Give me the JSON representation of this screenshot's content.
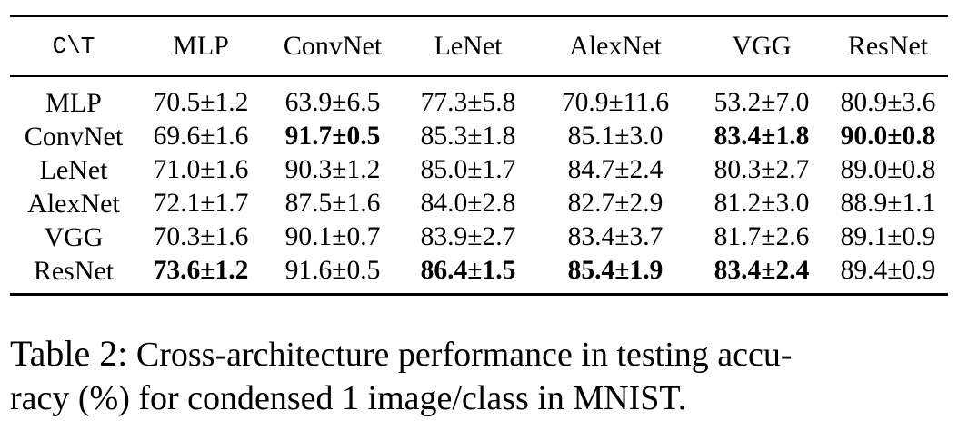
{
  "table": {
    "corner_label": "C\\T",
    "columns": [
      "MLP",
      "ConvNet",
      "LeNet",
      "AlexNet",
      "VGG",
      "ResNet"
    ],
    "rows": [
      {
        "label": "MLP",
        "cells": [
          "70.5±1.2",
          "63.9±6.5",
          "77.3±5.8",
          "70.9±11.6",
          "53.2±7.0",
          "80.9±3.6"
        ],
        "bold": [
          false,
          false,
          false,
          false,
          false,
          false
        ]
      },
      {
        "label": "ConvNet",
        "cells": [
          "69.6±1.6",
          "91.7±0.5",
          "85.3±1.8",
          "85.1±3.0",
          "83.4±1.8",
          "90.0±0.8"
        ],
        "bold": [
          false,
          true,
          false,
          false,
          true,
          true
        ]
      },
      {
        "label": "LeNet",
        "cells": [
          "71.0±1.6",
          "90.3±1.2",
          "85.0±1.7",
          "84.7±2.4",
          "80.3±2.7",
          "89.0±0.8"
        ],
        "bold": [
          false,
          false,
          false,
          false,
          false,
          false
        ]
      },
      {
        "label": "AlexNet",
        "cells": [
          "72.1±1.7",
          "87.5±1.6",
          "84.0±2.8",
          "82.7±2.9",
          "81.2±3.0",
          "88.9±1.1"
        ],
        "bold": [
          false,
          false,
          false,
          false,
          false,
          false
        ]
      },
      {
        "label": "VGG",
        "cells": [
          "70.3±1.6",
          "90.1±0.7",
          "83.9±2.7",
          "83.4±3.7",
          "81.7±2.6",
          "89.1±0.9"
        ],
        "bold": [
          false,
          false,
          false,
          false,
          false,
          false
        ]
      },
      {
        "label": "ResNet",
        "cells": [
          "73.6±1.2",
          "91.6±0.5",
          "86.4±1.5",
          "85.4±1.9",
          "83.4±2.4",
          "89.4±0.9"
        ],
        "bold": [
          true,
          false,
          true,
          true,
          true,
          false
        ]
      }
    ]
  },
  "caption": {
    "number": "Table 2:",
    "line1": "Cross-architecture performance in testing accu-",
    "line2": "racy (%) for condensed 1 image/class in MNIST."
  }
}
